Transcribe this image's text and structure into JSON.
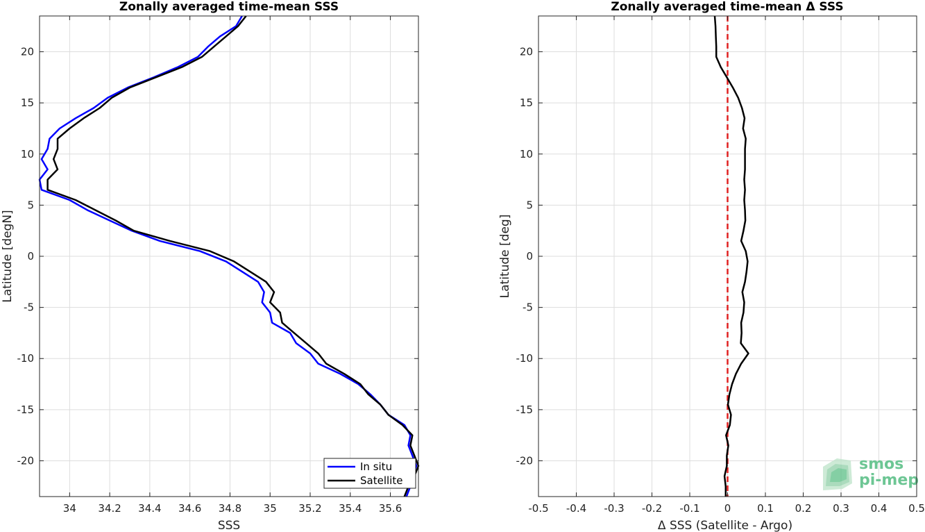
{
  "chart_data": [
    {
      "type": "line",
      "title": "Zonally averaged time-mean SSS",
      "xlabel": "SSS",
      "ylabel": "Latitude [degN]",
      "xlim": [
        33.85,
        35.74
      ],
      "ylim": [
        -23.5,
        23.5
      ],
      "xticks": [
        34,
        34.2,
        34.4,
        34.6,
        34.8,
        35,
        35.2,
        35.4,
        35.6
      ],
      "xtick_labels": [
        "34",
        "34.2",
        "34.4",
        "34.6",
        "34.8",
        "35",
        "35.2",
        "35.4",
        "35.6"
      ],
      "yticks": [
        -20,
        -15,
        -10,
        -5,
        0,
        5,
        10,
        15,
        20
      ],
      "ytick_labels": [
        "-20",
        "-15",
        "-10",
        "-5",
        "0",
        "5",
        "10",
        "15",
        "20"
      ],
      "grid": true,
      "legend_position": "bottom-right",
      "series": [
        {
          "name": "In situ",
          "color": "#0000ff",
          "points": [
            [
              35.68,
              -23.5
            ],
            [
              35.7,
              -22.5
            ],
            [
              35.71,
              -21.5
            ],
            [
              35.73,
              -20.5
            ],
            [
              35.71,
              -19.5
            ],
            [
              35.69,
              -18.5
            ],
            [
              35.7,
              -17.5
            ],
            [
              35.67,
              -16.5
            ],
            [
              35.59,
              -15.5
            ],
            [
              35.55,
              -14.5
            ],
            [
              35.5,
              -13.5
            ],
            [
              35.44,
              -12.5
            ],
            [
              35.35,
              -11.5
            ],
            [
              35.24,
              -10.5
            ],
            [
              35.2,
              -9.5
            ],
            [
              35.13,
              -8.5
            ],
            [
              35.1,
              -7.5
            ],
            [
              35.01,
              -6.5
            ],
            [
              35.0,
              -5.5
            ],
            [
              34.96,
              -4.5
            ],
            [
              34.97,
              -3.5
            ],
            [
              34.94,
              -2.5
            ],
            [
              34.86,
              -1.5
            ],
            [
              34.78,
              -0.5
            ],
            [
              34.65,
              0.5
            ],
            [
              34.45,
              1.5
            ],
            [
              34.31,
              2.5
            ],
            [
              34.2,
              3.5
            ],
            [
              34.09,
              4.5
            ],
            [
              34.0,
              5.5
            ],
            [
              33.86,
              6.5
            ],
            [
              33.85,
              7.5
            ],
            [
              33.89,
              8.5
            ],
            [
              33.86,
              9.5
            ],
            [
              33.89,
              10.5
            ],
            [
              33.9,
              11.5
            ],
            [
              33.95,
              12.5
            ],
            [
              34.03,
              13.5
            ],
            [
              34.12,
              14.5
            ],
            [
              34.19,
              15.5
            ],
            [
              34.29,
              16.5
            ],
            [
              34.42,
              17.5
            ],
            [
              34.54,
              18.5
            ],
            [
              34.64,
              19.5
            ],
            [
              34.69,
              20.5
            ],
            [
              34.75,
              21.5
            ],
            [
              34.83,
              22.5
            ],
            [
              34.86,
              23.5
            ]
          ]
        },
        {
          "name": "Satellite",
          "color": "#000000",
          "points": [
            [
              35.67,
              -23.5
            ],
            [
              35.69,
              -22.5
            ],
            [
              35.72,
              -21.5
            ],
            [
              35.74,
              -20.5
            ],
            [
              35.72,
              -19.5
            ],
            [
              35.7,
              -18.5
            ],
            [
              35.71,
              -17.5
            ],
            [
              35.66,
              -16.5
            ],
            [
              35.59,
              -15.5
            ],
            [
              35.55,
              -14.5
            ],
            [
              35.49,
              -13.5
            ],
            [
              35.45,
              -12.5
            ],
            [
              35.37,
              -11.5
            ],
            [
              35.28,
              -10.5
            ],
            [
              35.24,
              -9.5
            ],
            [
              35.18,
              -8.5
            ],
            [
              35.12,
              -7.5
            ],
            [
              35.06,
              -6.5
            ],
            [
              35.05,
              -5.5
            ],
            [
              35.0,
              -4.5
            ],
            [
              35.02,
              -3.5
            ],
            [
              34.98,
              -2.5
            ],
            [
              34.9,
              -1.5
            ],
            [
              34.82,
              -0.5
            ],
            [
              34.7,
              0.5
            ],
            [
              34.5,
              1.5
            ],
            [
              34.32,
              2.5
            ],
            [
              34.23,
              3.5
            ],
            [
              34.13,
              4.5
            ],
            [
              34.03,
              5.5
            ],
            [
              33.89,
              6.5
            ],
            [
              33.89,
              7.5
            ],
            [
              33.94,
              8.5
            ],
            [
              33.92,
              9.5
            ],
            [
              33.94,
              10.5
            ],
            [
              33.94,
              11.5
            ],
            [
              34.0,
              12.5
            ],
            [
              34.07,
              13.5
            ],
            [
              34.15,
              14.5
            ],
            [
              34.21,
              15.5
            ],
            [
              34.3,
              16.5
            ],
            [
              34.43,
              17.5
            ],
            [
              34.56,
              18.5
            ],
            [
              34.66,
              19.5
            ],
            [
              34.72,
              20.5
            ],
            [
              34.78,
              21.5
            ],
            [
              34.84,
              22.5
            ],
            [
              34.88,
              23.5
            ]
          ]
        }
      ]
    },
    {
      "type": "line",
      "title": "Zonally averaged time-mean Δ SSS",
      "xlabel": "Δ SSS (Satellite - Argo)",
      "ylabel": "Latitude [deg]",
      "xlim": [
        -0.5,
        0.5
      ],
      "ylim": [
        -23.5,
        23.5
      ],
      "xticks": [
        -0.5,
        -0.4,
        -0.3,
        -0.2,
        -0.1,
        0,
        0.1,
        0.2,
        0.3,
        0.4,
        0.5
      ],
      "xtick_labels": [
        "-0.5",
        "-0.4",
        "-0.3",
        "-0.2",
        "-0.1",
        "0",
        "0.1",
        "0.2",
        "0.3",
        "0.4",
        "0.5"
      ],
      "yticks": [
        -20,
        -15,
        -10,
        -5,
        0,
        5,
        10,
        15,
        20
      ],
      "ytick_labels": [
        "-20",
        "-15",
        "-10",
        "-5",
        "0",
        "5",
        "10",
        "15",
        "20"
      ],
      "grid": true,
      "reference_line": {
        "x": 0,
        "color": "#e02020",
        "style": "dashed"
      },
      "series": [
        {
          "color": "#000000",
          "points": [
            [
              -0.005,
              -23.5
            ],
            [
              -0.005,
              -22.5
            ],
            [
              -0.008,
              -21.5
            ],
            [
              -0.002,
              -20.5
            ],
            [
              -0.002,
              -19.5
            ],
            [
              0.002,
              -18.5
            ],
            [
              -0.004,
              -17.5
            ],
            [
              0.006,
              -16.5
            ],
            [
              0.009,
              -15.5
            ],
            [
              0.001,
              -14.5
            ],
            [
              0.005,
              -13.5
            ],
            [
              0.012,
              -12.5
            ],
            [
              0.022,
              -11.5
            ],
            [
              0.036,
              -10.5
            ],
            [
              0.055,
              -9.5
            ],
            [
              0.035,
              -8.5
            ],
            [
              0.037,
              -7.5
            ],
            [
              0.036,
              -6.5
            ],
            [
              0.042,
              -5.5
            ],
            [
              0.044,
              -4.5
            ],
            [
              0.039,
              -3.5
            ],
            [
              0.046,
              -2.5
            ],
            [
              0.05,
              -1.5
            ],
            [
              0.053,
              -0.5
            ],
            [
              0.048,
              0.5
            ],
            [
              0.036,
              1.5
            ],
            [
              0.042,
              2.5
            ],
            [
              0.047,
              3.5
            ],
            [
              0.046,
              4.5
            ],
            [
              0.044,
              5.5
            ],
            [
              0.046,
              6.5
            ],
            [
              0.044,
              7.5
            ],
            [
              0.046,
              8.5
            ],
            [
              0.046,
              9.5
            ],
            [
              0.046,
              10.5
            ],
            [
              0.048,
              11.5
            ],
            [
              0.041,
              12.5
            ],
            [
              0.045,
              13.5
            ],
            [
              0.038,
              14.5
            ],
            [
              0.028,
              15.5
            ],
            [
              0.014,
              16.5
            ],
            [
              -0.002,
              17.5
            ],
            [
              -0.018,
              18.5
            ],
            [
              -0.03,
              19.5
            ],
            [
              -0.03,
              20.5
            ],
            [
              -0.031,
              21.5
            ],
            [
              -0.032,
              22.5
            ],
            [
              -0.034,
              23.5
            ]
          ]
        }
      ]
    }
  ],
  "legend": {
    "items": [
      "In situ",
      "Satellite"
    ]
  },
  "logo": {
    "line1": "smos",
    "line2": "pi-mep"
  }
}
